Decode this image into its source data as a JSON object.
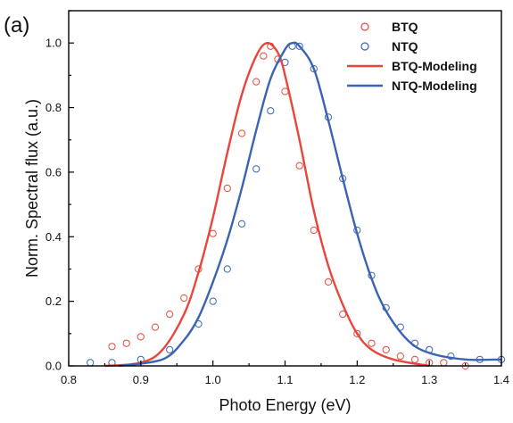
{
  "panel_label": "(a)",
  "chart_data": {
    "type": "scatter",
    "xlabel": "Photo Energy (eV)",
    "ylabel": "Norm. Spectral flux (a.u.)",
    "xlim": [
      0.8,
      1.4
    ],
    "ylim": [
      0.0,
      1.1
    ],
    "xticks": [
      "0.8",
      "0.9",
      "1.0",
      "1.1",
      "1.2",
      "1.3",
      "1.4"
    ],
    "yticks": [
      "0.0",
      "0.2",
      "0.4",
      "0.6",
      "0.8",
      "1.0"
    ],
    "grid": false,
    "legend_position": "top-right",
    "legend": [
      "BTQ",
      "NTQ",
      "BTQ-Modeling",
      "NTQ-Modeling"
    ],
    "colors": {
      "BTQ": "#e8463c",
      "NTQ": "#3a64b0"
    },
    "series": [
      {
        "name": "BTQ",
        "kind": "markers",
        "points": [
          [
            0.86,
            0.06
          ],
          [
            0.88,
            0.07
          ],
          [
            0.9,
            0.09
          ],
          [
            0.92,
            0.12
          ],
          [
            0.94,
            0.16
          ],
          [
            0.96,
            0.21
          ],
          [
            0.98,
            0.3
          ],
          [
            1.0,
            0.41
          ],
          [
            1.02,
            0.55
          ],
          [
            1.04,
            0.72
          ],
          [
            1.06,
            0.88
          ],
          [
            1.07,
            0.96
          ],
          [
            1.08,
            0.99
          ],
          [
            1.09,
            0.95
          ],
          [
            1.1,
            0.85
          ],
          [
            1.12,
            0.62
          ],
          [
            1.14,
            0.42
          ],
          [
            1.16,
            0.26
          ],
          [
            1.18,
            0.16
          ],
          [
            1.2,
            0.1
          ],
          [
            1.22,
            0.07
          ],
          [
            1.24,
            0.05
          ],
          [
            1.26,
            0.03
          ],
          [
            1.28,
            0.02
          ],
          [
            1.3,
            0.01
          ],
          [
            1.32,
            0.01
          ],
          [
            1.35,
            0.0
          ]
        ]
      },
      {
        "name": "NTQ",
        "kind": "markers",
        "points": [
          [
            0.83,
            0.01
          ],
          [
            0.86,
            0.01
          ],
          [
            0.9,
            0.02
          ],
          [
            0.94,
            0.05
          ],
          [
            0.98,
            0.13
          ],
          [
            1.0,
            0.2
          ],
          [
            1.02,
            0.3
          ],
          [
            1.04,
            0.44
          ],
          [
            1.06,
            0.61
          ],
          [
            1.08,
            0.79
          ],
          [
            1.1,
            0.94
          ],
          [
            1.11,
            0.99
          ],
          [
            1.12,
            0.99
          ],
          [
            1.14,
            0.92
          ],
          [
            1.16,
            0.77
          ],
          [
            1.18,
            0.58
          ],
          [
            1.2,
            0.42
          ],
          [
            1.22,
            0.28
          ],
          [
            1.24,
            0.18
          ],
          [
            1.26,
            0.12
          ],
          [
            1.28,
            0.07
          ],
          [
            1.3,
            0.05
          ],
          [
            1.33,
            0.03
          ],
          [
            1.37,
            0.02
          ],
          [
            1.4,
            0.02
          ]
        ]
      },
      {
        "name": "BTQ-Modeling",
        "kind": "line",
        "points": [
          [
            0.85,
            0.0
          ],
          [
            0.9,
            0.01
          ],
          [
            0.93,
            0.05
          ],
          [
            0.96,
            0.16
          ],
          [
            0.98,
            0.29
          ],
          [
            1.0,
            0.46
          ],
          [
            1.02,
            0.66
          ],
          [
            1.04,
            0.84
          ],
          [
            1.06,
            0.96
          ],
          [
            1.075,
            1.0
          ],
          [
            1.09,
            0.97
          ],
          [
            1.1,
            0.9
          ],
          [
            1.12,
            0.7
          ],
          [
            1.14,
            0.48
          ],
          [
            1.16,
            0.31
          ],
          [
            1.18,
            0.19
          ],
          [
            1.2,
            0.1
          ],
          [
            1.22,
            0.05
          ],
          [
            1.25,
            0.02
          ],
          [
            1.3,
            0.0
          ]
        ]
      },
      {
        "name": "NTQ-Modeling",
        "kind": "line",
        "points": [
          [
            0.87,
            0.0
          ],
          [
            0.93,
            0.02
          ],
          [
            0.96,
            0.08
          ],
          [
            0.98,
            0.15
          ],
          [
            1.0,
            0.26
          ],
          [
            1.02,
            0.39
          ],
          [
            1.04,
            0.55
          ],
          [
            1.06,
            0.73
          ],
          [
            1.08,
            0.89
          ],
          [
            1.1,
            0.98
          ],
          [
            1.11,
            1.0
          ],
          [
            1.12,
            0.99
          ],
          [
            1.14,
            0.92
          ],
          [
            1.16,
            0.76
          ],
          [
            1.18,
            0.58
          ],
          [
            1.2,
            0.41
          ],
          [
            1.22,
            0.27
          ],
          [
            1.24,
            0.17
          ],
          [
            1.27,
            0.08
          ],
          [
            1.3,
            0.04
          ],
          [
            1.35,
            0.02
          ],
          [
            1.4,
            0.02
          ]
        ]
      }
    ]
  }
}
